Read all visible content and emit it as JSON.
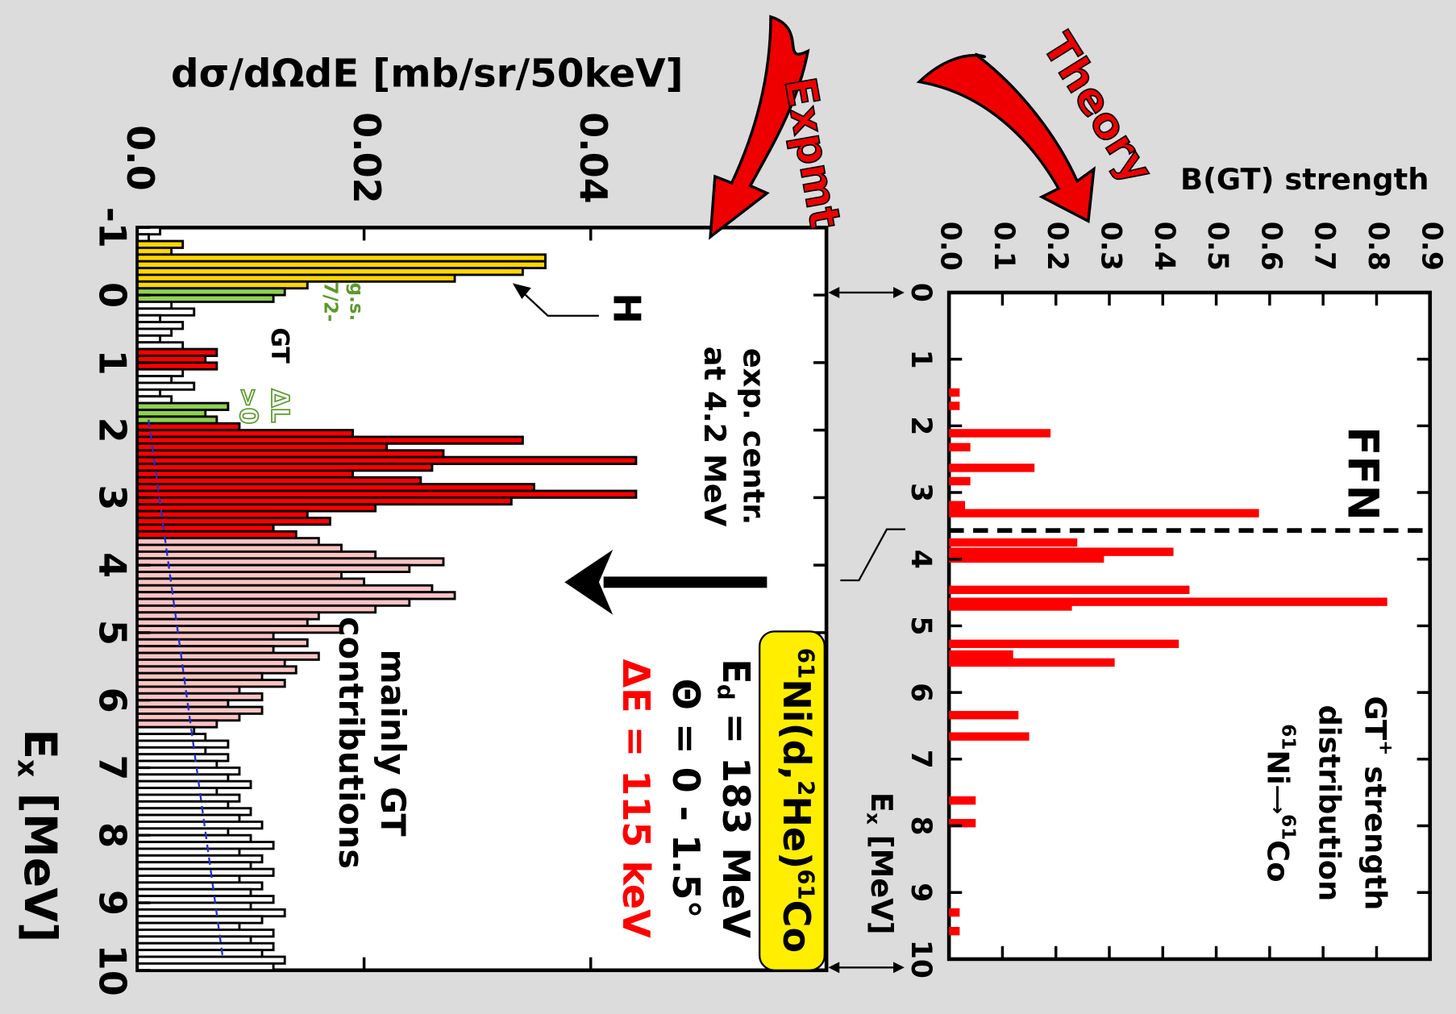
{
  "chart_data": [
    {
      "type": "histogram",
      "y_title": "dσ/dΩdE [mb/sr/50keV]",
      "x_title": [
        "E",
        "x",
        " [MeV]"
      ],
      "bins": [
        -1,
        -0.9,
        -0.8,
        -0.7,
        -0.6,
        -0.5,
        -0.4,
        -0.3,
        -0.2,
        -0.1,
        0,
        0.1,
        0.2,
        0.3,
        0.4,
        0.5,
        0.6,
        0.7,
        0.8,
        0.9,
        1,
        1.1,
        1.2,
        1.3,
        1.4,
        1.5,
        1.6,
        1.7,
        1.8,
        1.9,
        2,
        2.1,
        2.2,
        2.3,
        2.4,
        2.5,
        2.6,
        2.7,
        2.8,
        2.9,
        3,
        3.1,
        3.2,
        3.3,
        3.4,
        3.5,
        3.6,
        3.7,
        3.8,
        3.9,
        4,
        4.1,
        4.2,
        4.3,
        4.4,
        4.5,
        4.6,
        4.7,
        4.8,
        4.9,
        5,
        5.1,
        5.2,
        5.3,
        5.4,
        5.5,
        5.6,
        5.7,
        5.8,
        5.9,
        6,
        6.1,
        6.2,
        6.3,
        6.4,
        6.5,
        6.6,
        6.7,
        6.8,
        6.9,
        7,
        7.1,
        7.2,
        7.3,
        7.4,
        7.5,
        7.6,
        7.7,
        7.8,
        7.9,
        8,
        8.1,
        8.2,
        8.3,
        8.4,
        8.5,
        8.6,
        8.7,
        8.8,
        8.9,
        9,
        9.1,
        9.2,
        9.3,
        9.4,
        9.5,
        9.6,
        9.7,
        9.8,
        9.9,
        10
      ],
      "values": [
        0.002,
        0.001,
        0.004,
        0.003,
        0.036,
        0.036,
        0.034,
        0.028,
        0.015,
        0.013,
        0.012,
        0.003,
        0.005,
        0.002,
        0.004,
        0.003,
        0.002,
        0.004,
        0.007,
        0.006,
        0.007,
        0.004,
        0.003,
        0.005,
        0.002,
        0.003,
        0.008,
        0.006,
        0.007,
        0.009,
        0.019,
        0.034,
        0.022,
        0.027,
        0.044,
        0.026,
        0.019,
        0.025,
        0.035,
        0.044,
        0.033,
        0.021,
        0.015,
        0.017,
        0.012,
        0.014,
        0.016,
        0.018,
        0.021,
        0.027,
        0.024,
        0.018,
        0.02,
        0.026,
        0.028,
        0.024,
        0.021,
        0.016,
        0.015,
        0.018,
        0.012,
        0.015,
        0.012,
        0.016,
        0.013,
        0.014,
        0.011,
        0.013,
        0.009,
        0.011,
        0.008,
        0.011,
        0.009,
        0.007,
        0.005,
        0.006,
        0.008,
        0.006,
        0.008,
        0.007,
        0.009,
        0.008,
        0.01,
        0.007,
        0.009,
        0.008,
        0.01,
        0.009,
        0.011,
        0.008,
        0.01,
        0.012,
        0.009,
        0.011,
        0.01,
        0.012,
        0.009,
        0.011,
        0.01,
        0.012,
        0.01,
        0.013,
        0.011,
        0.009,
        0.012,
        0.01,
        0.012,
        0.011,
        0.013,
        0.012
      ],
      "regions": [
        {
          "from": -0.8,
          "to": -0.1,
          "color": "#ffd700"
        },
        {
          "from": -0.1,
          "to": 0.1,
          "color": "#8fd14f"
        },
        {
          "from": 0.8,
          "to": 1.1,
          "color": "#ff0000"
        },
        {
          "from": 1.6,
          "to": 1.9,
          "color": "#8fd14f"
        },
        {
          "from": 1.9,
          "to": 3.6,
          "color": "#ff0000"
        },
        {
          "from": 3.6,
          "to": 6.4,
          "color": "#fbc4c4"
        }
      ],
      "xlim": [
        -1,
        10
      ],
      "xticks": [
        -1,
        0,
        1,
        2,
        3,
        4,
        5,
        6,
        7,
        8,
        9,
        10
      ],
      "ylim": [
        0,
        0.0608
      ],
      "yticks": [
        {
          "value": 0,
          "label": "0.0"
        },
        0.02,
        0.04
      ],
      "annotations": {
        "H": "H",
        "gs": "g.s.",
        "spin": "7/2-",
        "gt": "GT",
        "dl": "ΔL",
        "dl2": ">0",
        "centr1": "exp. centr.",
        "centr2": "at 4.2 MeV",
        "main1": "mainly GT",
        "main2": "contributions",
        "reaction": [
          "61",
          "Ni(d,",
          "2",
          "He)",
          "61",
          "Co"
        ],
        "energy": [
          "E",
          "d",
          " = 183 MeV"
        ],
        "angle": "Θ = 0 - 1.5°",
        "resolution": "ΔE = 115 keV",
        "expmt": "Expmt"
      }
    },
    {
      "type": "bar",
      "y_title": "B(GT) strength",
      "x_title": [
        "E",
        "x",
        " [MeV]"
      ],
      "x": [
        1.5,
        1.7,
        2.11,
        2.32,
        2.63,
        2.83,
        3.19,
        3.31,
        3.75,
        3.89,
        3.99,
        4.46,
        4.64,
        4.71,
        5.27,
        5.43,
        5.55,
        6.34,
        6.66,
        7.62,
        7.96,
        9.3,
        9.58
      ],
      "values": [
        0.02,
        0.02,
        0.19,
        0.04,
        0.16,
        0.04,
        0.03,
        0.58,
        0.24,
        0.42,
        0.29,
        0.45,
        0.82,
        0.23,
        0.43,
        0.12,
        0.31,
        0.13,
        0.15,
        0.05,
        0.05,
        0.02,
        0.02
      ],
      "color": "#ff0000",
      "xlim": [
        0,
        10
      ],
      "xticks": [
        0,
        1,
        2,
        3,
        4,
        5,
        6,
        7,
        8,
        9,
        10
      ],
      "ylim": [
        0,
        0.9
      ],
      "yticks": [
        {
          "value": 0,
          "label": "0.0"
        },
        0.1,
        0.2,
        0.3,
        0.4,
        0.5,
        0.6,
        0.7,
        0.8,
        0.9
      ],
      "threshold": 3.57,
      "annotations": {
        "ffn": "FFN",
        "t1": [
          "GT",
          "+",
          " strength"
        ],
        "t2": "distribution",
        "t3": [
          "61",
          "Ni",
          "⟶",
          "61",
          "Co"
        ],
        "theory": "Theory"
      }
    }
  ]
}
